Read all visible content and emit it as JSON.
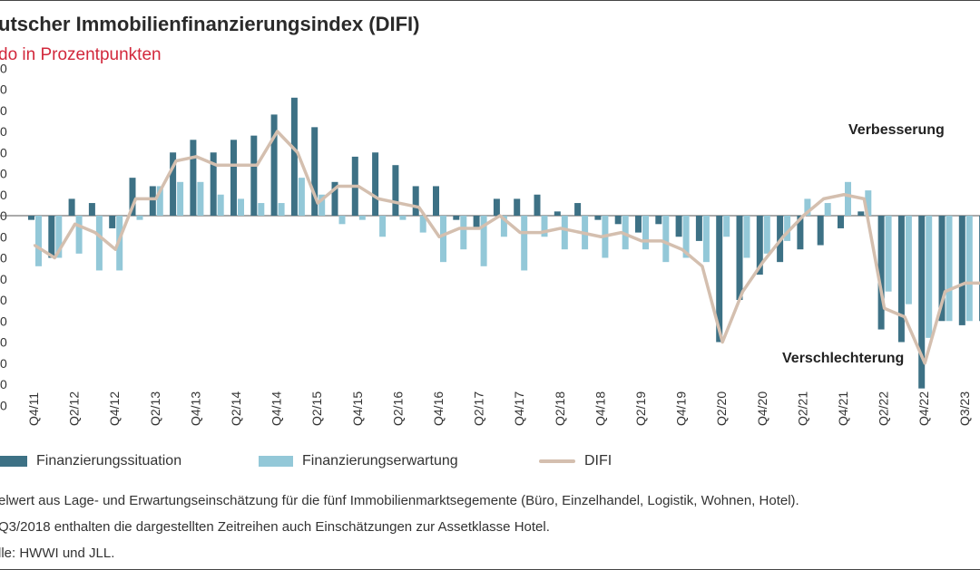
{
  "header": {
    "title": "utscher Immobilienfinanzierungsindex (DIFI)",
    "subtitle": "do in Prozentpunkten"
  },
  "legend": {
    "situation": "Finanzierungssituation",
    "expectation": "Finanzierungserwartung",
    "difi": "DIFI"
  },
  "notes": [
    "elwert aus Lage- und Erwartungseinschätzung für die fünf Immobilienmarktsegemente (Büro, Einzelhandel, Logistik, Wohnen, Hotel).",
    " Q3/2018 enthalten die dargestellten Zeitreihen auch Einschätzungen zur Assetklasse Hotel.",
    "lle: HWWI und JLL."
  ],
  "colors": {
    "situation": "#3d7185",
    "expectation": "#93c8d8",
    "difi": "#d4bfaf",
    "title": "#2a2a2a",
    "subtitle": "#d2283c"
  },
  "chart_data": {
    "type": "bar",
    "y_tick_labels": [
      "0",
      "0",
      "0",
      "0",
      "0",
      "0",
      "0",
      "0",
      "0",
      "0",
      "0",
      "0",
      "0",
      "0",
      "0",
      "0",
      "0"
    ],
    "x_tick_labels": [
      "Q4/11",
      "Q2/12",
      "Q4/12",
      "Q2/13",
      "Q4/13",
      "Q2/14",
      "Q4/14",
      "Q2/15",
      "Q4/15",
      "Q2/16",
      "Q4/16",
      "Q2/17",
      "Q4/17",
      "Q2/18",
      "Q4/18",
      "Q2/19",
      "Q4/19",
      "Q2/20",
      "Q4/20",
      "Q2/21",
      "Q4/21",
      "Q2/22",
      "Q4/22",
      "Q3/23"
    ],
    "annotations": {
      "up": "Verbesserung",
      "down": "Verschlechterung"
    },
    "ylim": [
      -45,
      35
    ],
    "categories": [
      "Q4/11",
      "Q1/12",
      "Q2/12",
      "Q3/12",
      "Q4/12",
      "Q1/13",
      "Q2/13",
      "Q3/13",
      "Q4/13",
      "Q1/14",
      "Q2/14",
      "Q3/14",
      "Q4/14",
      "Q1/15",
      "Q2/15",
      "Q3/15",
      "Q4/15",
      "Q1/16",
      "Q2/16",
      "Q3/16",
      "Q4/16",
      "Q1/17",
      "Q2/17",
      "Q3/17",
      "Q4/17",
      "Q1/18",
      "Q2/18",
      "Q3/18",
      "Q4/18",
      "Q1/19",
      "Q2/19",
      "Q3/19",
      "Q4/19",
      "Q1/20",
      "Q2/20",
      "Q3/20",
      "Q4/20",
      "Q1/21",
      "Q2/21",
      "Q3/21",
      "Q4/21",
      "Q1/22",
      "Q2/22",
      "Q3/22",
      "Q4/22",
      "Q1/23",
      "Q2/23",
      "Q3/23",
      "Q4/23"
    ],
    "series": [
      {
        "name": "Finanzierungssituation",
        "values": [
          -1,
          -10,
          4,
          3,
          -3,
          9,
          7,
          15,
          18,
          15,
          18,
          19,
          24,
          28,
          21,
          8,
          14,
          15,
          12,
          7,
          7,
          -1,
          -3,
          4,
          4,
          5,
          1,
          3,
          -1,
          -2,
          -4,
          -2,
          -5,
          -6,
          -30,
          -20,
          -14,
          -11,
          -8,
          -7,
          -3,
          1,
          -27,
          -30,
          -41,
          -25,
          -26,
          -25,
          -21
        ],
        "color": "#3d7185"
      },
      {
        "name": "Finanzierungserwartung",
        "values": [
          -12,
          -10,
          -9,
          -13,
          -13,
          -1,
          7,
          8,
          8,
          5,
          4,
          3,
          3,
          9,
          5,
          -2,
          -1,
          -5,
          -1,
          -4,
          -11,
          -8,
          -12,
          -5,
          -13,
          -5,
          -8,
          -8,
          -10,
          -8,
          -8,
          -11,
          -10,
          -11,
          -5,
          -10,
          -9,
          -6,
          4,
          3,
          8,
          6,
          -18,
          -21,
          -29,
          -25,
          -25,
          -8,
          -7
        ],
        "color": "#93c8d8"
      },
      {
        "name": "DIFI",
        "values": [
          -7,
          -10,
          -2,
          -4,
          -8,
          4,
          4,
          13,
          14,
          12,
          12,
          12,
          20,
          15,
          3,
          7,
          7,
          4,
          3,
          2,
          -5,
          -3,
          -3,
          0,
          -4,
          -4,
          -3,
          -4,
          -5,
          -4,
          -6,
          -6,
          -8,
          -12,
          -30,
          -18,
          -11,
          -5,
          0,
          4,
          5,
          4,
          -22,
          -24,
          -35,
          -18,
          -16,
          -16,
          -19
        ],
        "color": "#d4bfaf"
      }
    ]
  }
}
